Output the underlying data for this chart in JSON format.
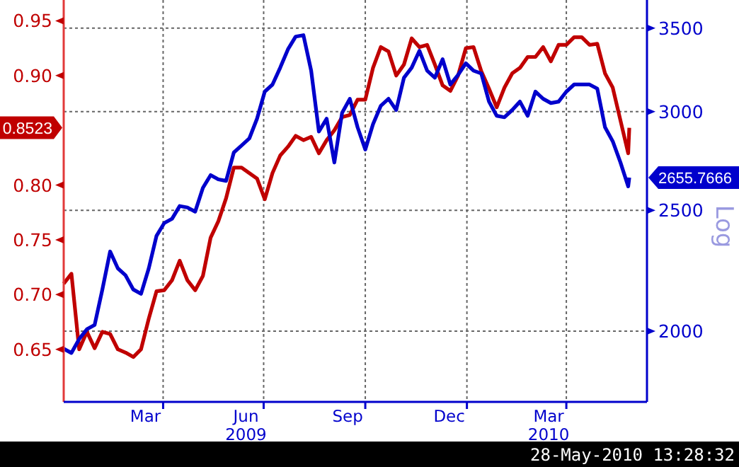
{
  "chart_data": {
    "type": "line",
    "x": [
      "2009-01-01",
      "2009-01-08",
      "2009-01-15",
      "2009-01-22",
      "2009-01-29",
      "2009-02-05",
      "2009-02-12",
      "2009-02-19",
      "2009-02-26",
      "2009-03-05",
      "2009-03-12",
      "2009-03-19",
      "2009-03-26",
      "2009-04-02",
      "2009-04-09",
      "2009-04-16",
      "2009-04-23",
      "2009-04-30",
      "2009-05-07",
      "2009-05-14",
      "2009-05-21",
      "2009-05-28",
      "2009-06-04",
      "2009-06-11",
      "2009-06-18",
      "2009-06-25",
      "2009-07-02",
      "2009-07-09",
      "2009-07-16",
      "2009-07-23",
      "2009-07-30",
      "2009-08-06",
      "2009-08-13",
      "2009-08-20",
      "2009-08-27",
      "2009-09-03",
      "2009-09-10",
      "2009-09-17",
      "2009-09-24",
      "2009-10-01",
      "2009-10-08",
      "2009-10-15",
      "2009-10-22",
      "2009-10-29",
      "2009-11-05",
      "2009-11-12",
      "2009-11-19",
      "2009-11-26",
      "2009-12-03",
      "2009-12-10",
      "2009-12-17",
      "2009-12-24",
      "2009-12-31",
      "2010-01-07",
      "2010-01-14",
      "2010-01-21",
      "2010-01-28",
      "2010-02-04",
      "2010-02-11",
      "2010-02-18",
      "2010-02-25",
      "2010-03-04",
      "2010-03-11",
      "2010-03-18",
      "2010-03-25",
      "2010-04-01",
      "2010-04-08",
      "2010-04-15",
      "2010-04-22",
      "2010-04-29",
      "2010-05-06",
      "2010-05-13",
      "2010-05-20",
      "2010-05-27",
      "2010-05-28"
    ],
    "series": [
      {
        "color": "#c00000",
        "values": [
          0.71,
          0.719,
          0.65,
          0.666,
          0.651,
          0.666,
          0.664,
          0.65,
          0.647,
          0.643,
          0.65,
          0.678,
          0.703,
          0.704,
          0.713,
          0.731,
          0.713,
          0.704,
          0.717,
          0.752,
          0.767,
          0.788,
          0.816,
          0.816,
          0.811,
          0.806,
          0.787,
          0.811,
          0.827,
          0.835,
          0.845,
          0.841,
          0.844,
          0.829,
          0.841,
          0.85,
          0.862,
          0.864,
          0.878,
          0.878,
          0.907,
          0.926,
          0.922,
          0.9,
          0.91,
          0.934,
          0.926,
          0.928,
          0.91,
          0.891,
          0.886,
          0.9,
          0.925,
          0.926,
          0.904,
          0.888,
          0.871,
          0.889,
          0.902,
          0.907,
          0.917,
          0.917,
          0.926,
          0.913,
          0.928,
          0.928,
          0.935,
          0.935,
          0.928,
          0.929,
          0.902,
          0.889,
          0.859,
          0.829,
          0.8523
        ]
      },
      {
        "color": "#0000cc",
        "axis": "y2",
        "values": [
          1936,
          1921,
          1971,
          2007,
          2023,
          2160,
          2317,
          2246,
          2217,
          2160,
          2143,
          2246,
          2385,
          2442,
          2461,
          2520,
          2513,
          2494,
          2606,
          2668,
          2647,
          2640,
          2782,
          2818,
          2855,
          2961,
          3113,
          3154,
          3254,
          3366,
          3446,
          3455,
          3236,
          2892,
          2961,
          2731,
          2993,
          3072,
          2915,
          2797,
          2931,
          3032,
          3072,
          3009,
          3194,
          3254,
          3357,
          3236,
          3194,
          3305,
          3154,
          3211,
          3280,
          3236,
          3219,
          3056,
          2977,
          2969,
          3009,
          3056,
          2977,
          3113,
          3072,
          3048,
          3056,
          3113,
          3154,
          3154,
          3154,
          3130,
          2915,
          2840,
          2731,
          2613,
          2655.7666
        ]
      }
    ],
    "xlim": [
      "2009-01-01",
      "2010-06-13"
    ],
    "xticks": [
      {
        "value": "2009-03-16",
        "label": "Mar"
      },
      {
        "value": "2009-04-01",
        "label": null
      },
      {
        "value": "2009-06-15",
        "label": "Jun\n2009"
      },
      {
        "value": "2009-07-01",
        "label": null
      },
      {
        "value": "2009-09-15",
        "label": "Sep"
      },
      {
        "value": "2009-10-01",
        "label": null
      },
      {
        "value": "2009-12-16",
        "label": "Dec"
      },
      {
        "value": "2010-01-01",
        "label": null
      },
      {
        "value": "2010-03-16",
        "label": "Mar\n2010"
      },
      {
        "value": "2010-04-01",
        "label": null
      }
    ],
    "ylim": [
      0.602,
      0.969
    ],
    "yticks": [
      0.65,
      {
        "value": 0.7,
        "label": "0.70"
      },
      0.75,
      {
        "value": 0.8,
        "label": "0.80"
      },
      {
        "value": 0.9,
        "label": "0.90"
      },
      0.95,
      {
        "value": 0.8523,
        "label": "0.8523"
      }
    ],
    "y2lim": [
      1755,
      3687
    ],
    "y2ticks": [
      2000,
      2500,
      3000,
      3500,
      {
        "value": 2655.7666,
        "label": "2655.7666"
      }
    ],
    "y2label": "Log",
    "log": "y2",
    "grid": true,
    "annotations": [
      "28-May-2010 13:28:32"
    ]
  }
}
